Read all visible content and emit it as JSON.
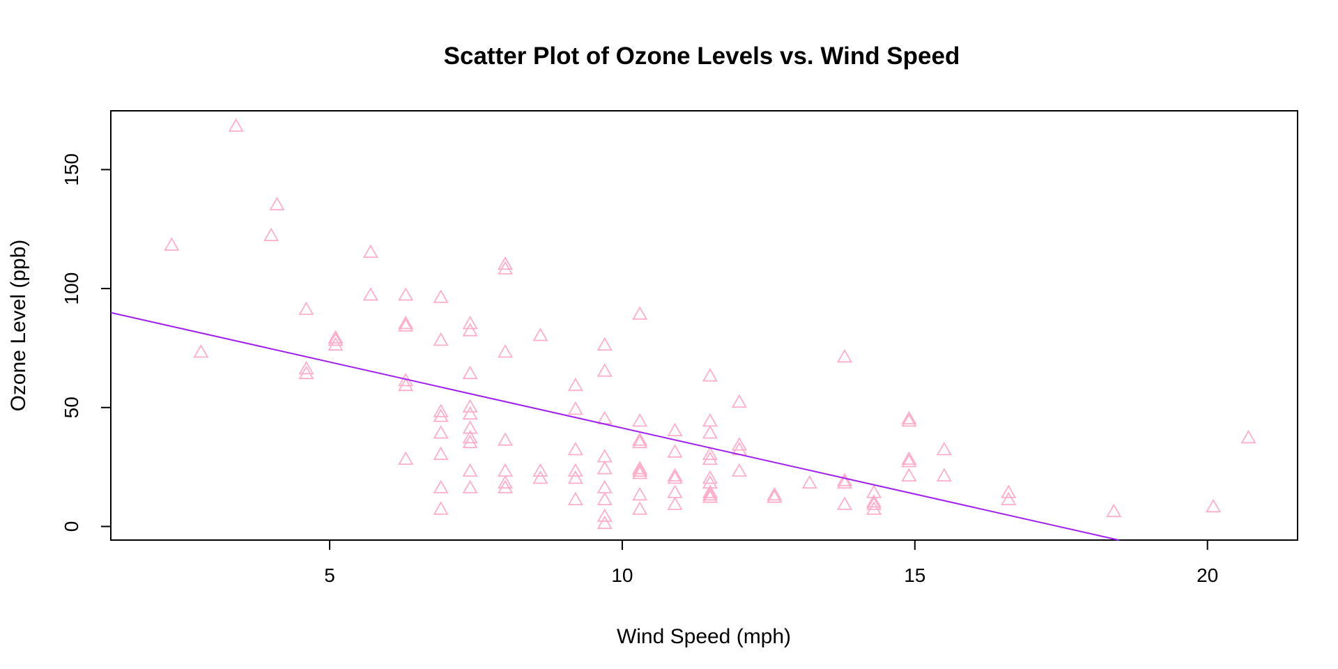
{
  "chart_data": {
    "type": "scatter",
    "title": "Scatter Plot of Ozone Levels vs. Wind Speed",
    "xlabel": "Wind Speed (mph)",
    "ylabel": "Ozone Level (ppb)",
    "xlim": [
      1.26,
      21.54
    ],
    "ylim": [
      -5.72,
      174.72
    ],
    "x_ticks": [
      5,
      10,
      15,
      20
    ],
    "y_ticks": [
      0,
      50,
      100,
      150
    ],
    "grid": false,
    "legend": "none",
    "marker": "open-triangle",
    "point_color": "#ffaec9",
    "line_color": "#a020f0",
    "regression_line": {
      "intercept": 96.87,
      "slope": -5.55
    },
    "points": [
      {
        "x": 3.4,
        "y": 168
      },
      {
        "x": 2.3,
        "y": 118
      },
      {
        "x": 4.0,
        "y": 122
      },
      {
        "x": 4.1,
        "y": 135
      },
      {
        "x": 2.8,
        "y": 73
      },
      {
        "x": 4.6,
        "y": 91
      },
      {
        "x": 4.6,
        "y": 66
      },
      {
        "x": 4.6,
        "y": 64
      },
      {
        "x": 5.1,
        "y": 79
      },
      {
        "x": 5.1,
        "y": 78
      },
      {
        "x": 5.1,
        "y": 76
      },
      {
        "x": 5.7,
        "y": 115
      },
      {
        "x": 5.7,
        "y": 97
      },
      {
        "x": 6.3,
        "y": 97
      },
      {
        "x": 6.3,
        "y": 85
      },
      {
        "x": 6.3,
        "y": 84
      },
      {
        "x": 6.3,
        "y": 61
      },
      {
        "x": 6.3,
        "y": 59
      },
      {
        "x": 6.3,
        "y": 28
      },
      {
        "x": 6.9,
        "y": 96
      },
      {
        "x": 6.9,
        "y": 78
      },
      {
        "x": 6.9,
        "y": 48
      },
      {
        "x": 6.9,
        "y": 46
      },
      {
        "x": 6.9,
        "y": 39
      },
      {
        "x": 6.9,
        "y": 30
      },
      {
        "x": 6.9,
        "y": 16
      },
      {
        "x": 6.9,
        "y": 7
      },
      {
        "x": 7.4,
        "y": 85
      },
      {
        "x": 7.4,
        "y": 82
      },
      {
        "x": 7.4,
        "y": 64
      },
      {
        "x": 7.4,
        "y": 50
      },
      {
        "x": 7.4,
        "y": 47
      },
      {
        "x": 7.4,
        "y": 41
      },
      {
        "x": 7.4,
        "y": 37
      },
      {
        "x": 7.4,
        "y": 35
      },
      {
        "x": 7.4,
        "y": 23
      },
      {
        "x": 7.4,
        "y": 16
      },
      {
        "x": 8.0,
        "y": 110
      },
      {
        "x": 8.0,
        "y": 108
      },
      {
        "x": 8.0,
        "y": 73
      },
      {
        "x": 8.0,
        "y": 36
      },
      {
        "x": 8.0,
        "y": 23
      },
      {
        "x": 8.0,
        "y": 18
      },
      {
        "x": 8.0,
        "y": 16
      },
      {
        "x": 8.6,
        "y": 80
      },
      {
        "x": 8.6,
        "y": 23
      },
      {
        "x": 8.6,
        "y": 20
      },
      {
        "x": 9.2,
        "y": 59
      },
      {
        "x": 9.2,
        "y": 49
      },
      {
        "x": 9.2,
        "y": 32
      },
      {
        "x": 9.2,
        "y": 23
      },
      {
        "x": 9.2,
        "y": 20
      },
      {
        "x": 9.2,
        "y": 11
      },
      {
        "x": 9.7,
        "y": 76
      },
      {
        "x": 9.7,
        "y": 65
      },
      {
        "x": 9.7,
        "y": 45
      },
      {
        "x": 9.7,
        "y": 29
      },
      {
        "x": 9.7,
        "y": 24
      },
      {
        "x": 9.7,
        "y": 16
      },
      {
        "x": 9.7,
        "y": 11
      },
      {
        "x": 9.7,
        "y": 4
      },
      {
        "x": 9.7,
        "y": 1
      },
      {
        "x": 10.3,
        "y": 89
      },
      {
        "x": 10.3,
        "y": 44
      },
      {
        "x": 10.3,
        "y": 36
      },
      {
        "x": 10.3,
        "y": 35
      },
      {
        "x": 10.3,
        "y": 24
      },
      {
        "x": 10.3,
        "y": 23
      },
      {
        "x": 10.3,
        "y": 22
      },
      {
        "x": 10.3,
        "y": 13
      },
      {
        "x": 10.3,
        "y": 7
      },
      {
        "x": 10.9,
        "y": 40
      },
      {
        "x": 10.9,
        "y": 31
      },
      {
        "x": 10.9,
        "y": 21
      },
      {
        "x": 10.9,
        "y": 20
      },
      {
        "x": 10.9,
        "y": 14
      },
      {
        "x": 10.9,
        "y": 9
      },
      {
        "x": 11.5,
        "y": 63
      },
      {
        "x": 11.5,
        "y": 44
      },
      {
        "x": 11.5,
        "y": 39
      },
      {
        "x": 11.5,
        "y": 30
      },
      {
        "x": 11.5,
        "y": 28
      },
      {
        "x": 11.5,
        "y": 20
      },
      {
        "x": 11.5,
        "y": 18
      },
      {
        "x": 11.5,
        "y": 14
      },
      {
        "x": 11.5,
        "y": 13
      },
      {
        "x": 11.5,
        "y": 12
      },
      {
        "x": 12.0,
        "y": 52
      },
      {
        "x": 12.0,
        "y": 34
      },
      {
        "x": 12.0,
        "y": 32
      },
      {
        "x": 12.0,
        "y": 23
      },
      {
        "x": 12.6,
        "y": 13
      },
      {
        "x": 12.6,
        "y": 12
      },
      {
        "x": 13.2,
        "y": 18
      },
      {
        "x": 13.8,
        "y": 71
      },
      {
        "x": 13.8,
        "y": 19
      },
      {
        "x": 13.8,
        "y": 18
      },
      {
        "x": 13.8,
        "y": 9
      },
      {
        "x": 14.3,
        "y": 14
      },
      {
        "x": 14.3,
        "y": 10
      },
      {
        "x": 14.3,
        "y": 9
      },
      {
        "x": 14.3,
        "y": 7
      },
      {
        "x": 14.9,
        "y": 45
      },
      {
        "x": 14.9,
        "y": 44
      },
      {
        "x": 14.9,
        "y": 28
      },
      {
        "x": 14.9,
        "y": 27
      },
      {
        "x": 14.9,
        "y": 21
      },
      {
        "x": 15.5,
        "y": 32
      },
      {
        "x": 15.5,
        "y": 21
      },
      {
        "x": 16.6,
        "y": 14
      },
      {
        "x": 16.6,
        "y": 11
      },
      {
        "x": 18.4,
        "y": 6
      },
      {
        "x": 20.1,
        "y": 8
      },
      {
        "x": 20.7,
        "y": 37
      }
    ]
  }
}
